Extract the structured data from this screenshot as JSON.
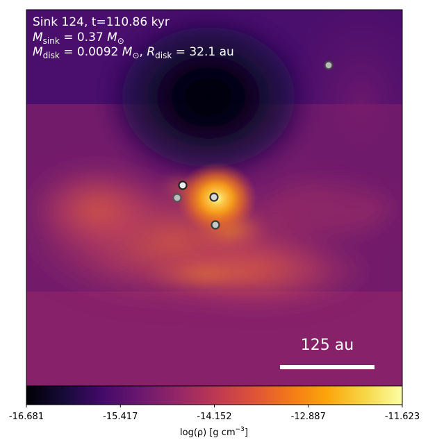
{
  "annotation": {
    "line1": "Sink 124, t=110.86 kyr",
    "m_sink_symbol": "M",
    "m_sink_sub": "sink",
    "m_sink_value": " = 0.37 ",
    "m_sink_unit": "M",
    "m_sink_unit_sub": "⊙",
    "m_disk_symbol": "M",
    "m_disk_sub": "disk",
    "m_disk_value": " = 0.0092 ",
    "m_disk_unit": "M",
    "m_disk_unit_sub": "⊙",
    "comma": ", ",
    "r_disk_symbol": "R",
    "r_disk_sub": "disk",
    "r_disk_value": " = 32.1 au"
  },
  "scalebar": {
    "label": "125 au"
  },
  "colorbar": {
    "colormap": "inferno",
    "ticks": [
      "-16.681",
      "-15.417",
      "-14.152",
      "-12.887",
      "-11.623"
    ],
    "label_prefix": "log(ρ) [g cm",
    "label_exp": "−3",
    "label_suffix": "]"
  },
  "sinks": [
    {
      "fill": "#b9b9b9",
      "stroke": "#444444"
    },
    {
      "fill": "#eeeeee",
      "stroke": "#222222"
    },
    {
      "fill": "#bdbdbd",
      "stroke": "#555555"
    },
    {
      "fill": "#d8d8d8",
      "stroke": "#333333"
    },
    {
      "fill": "#c8c8c8",
      "stroke": "#3a3a3a"
    }
  ]
}
